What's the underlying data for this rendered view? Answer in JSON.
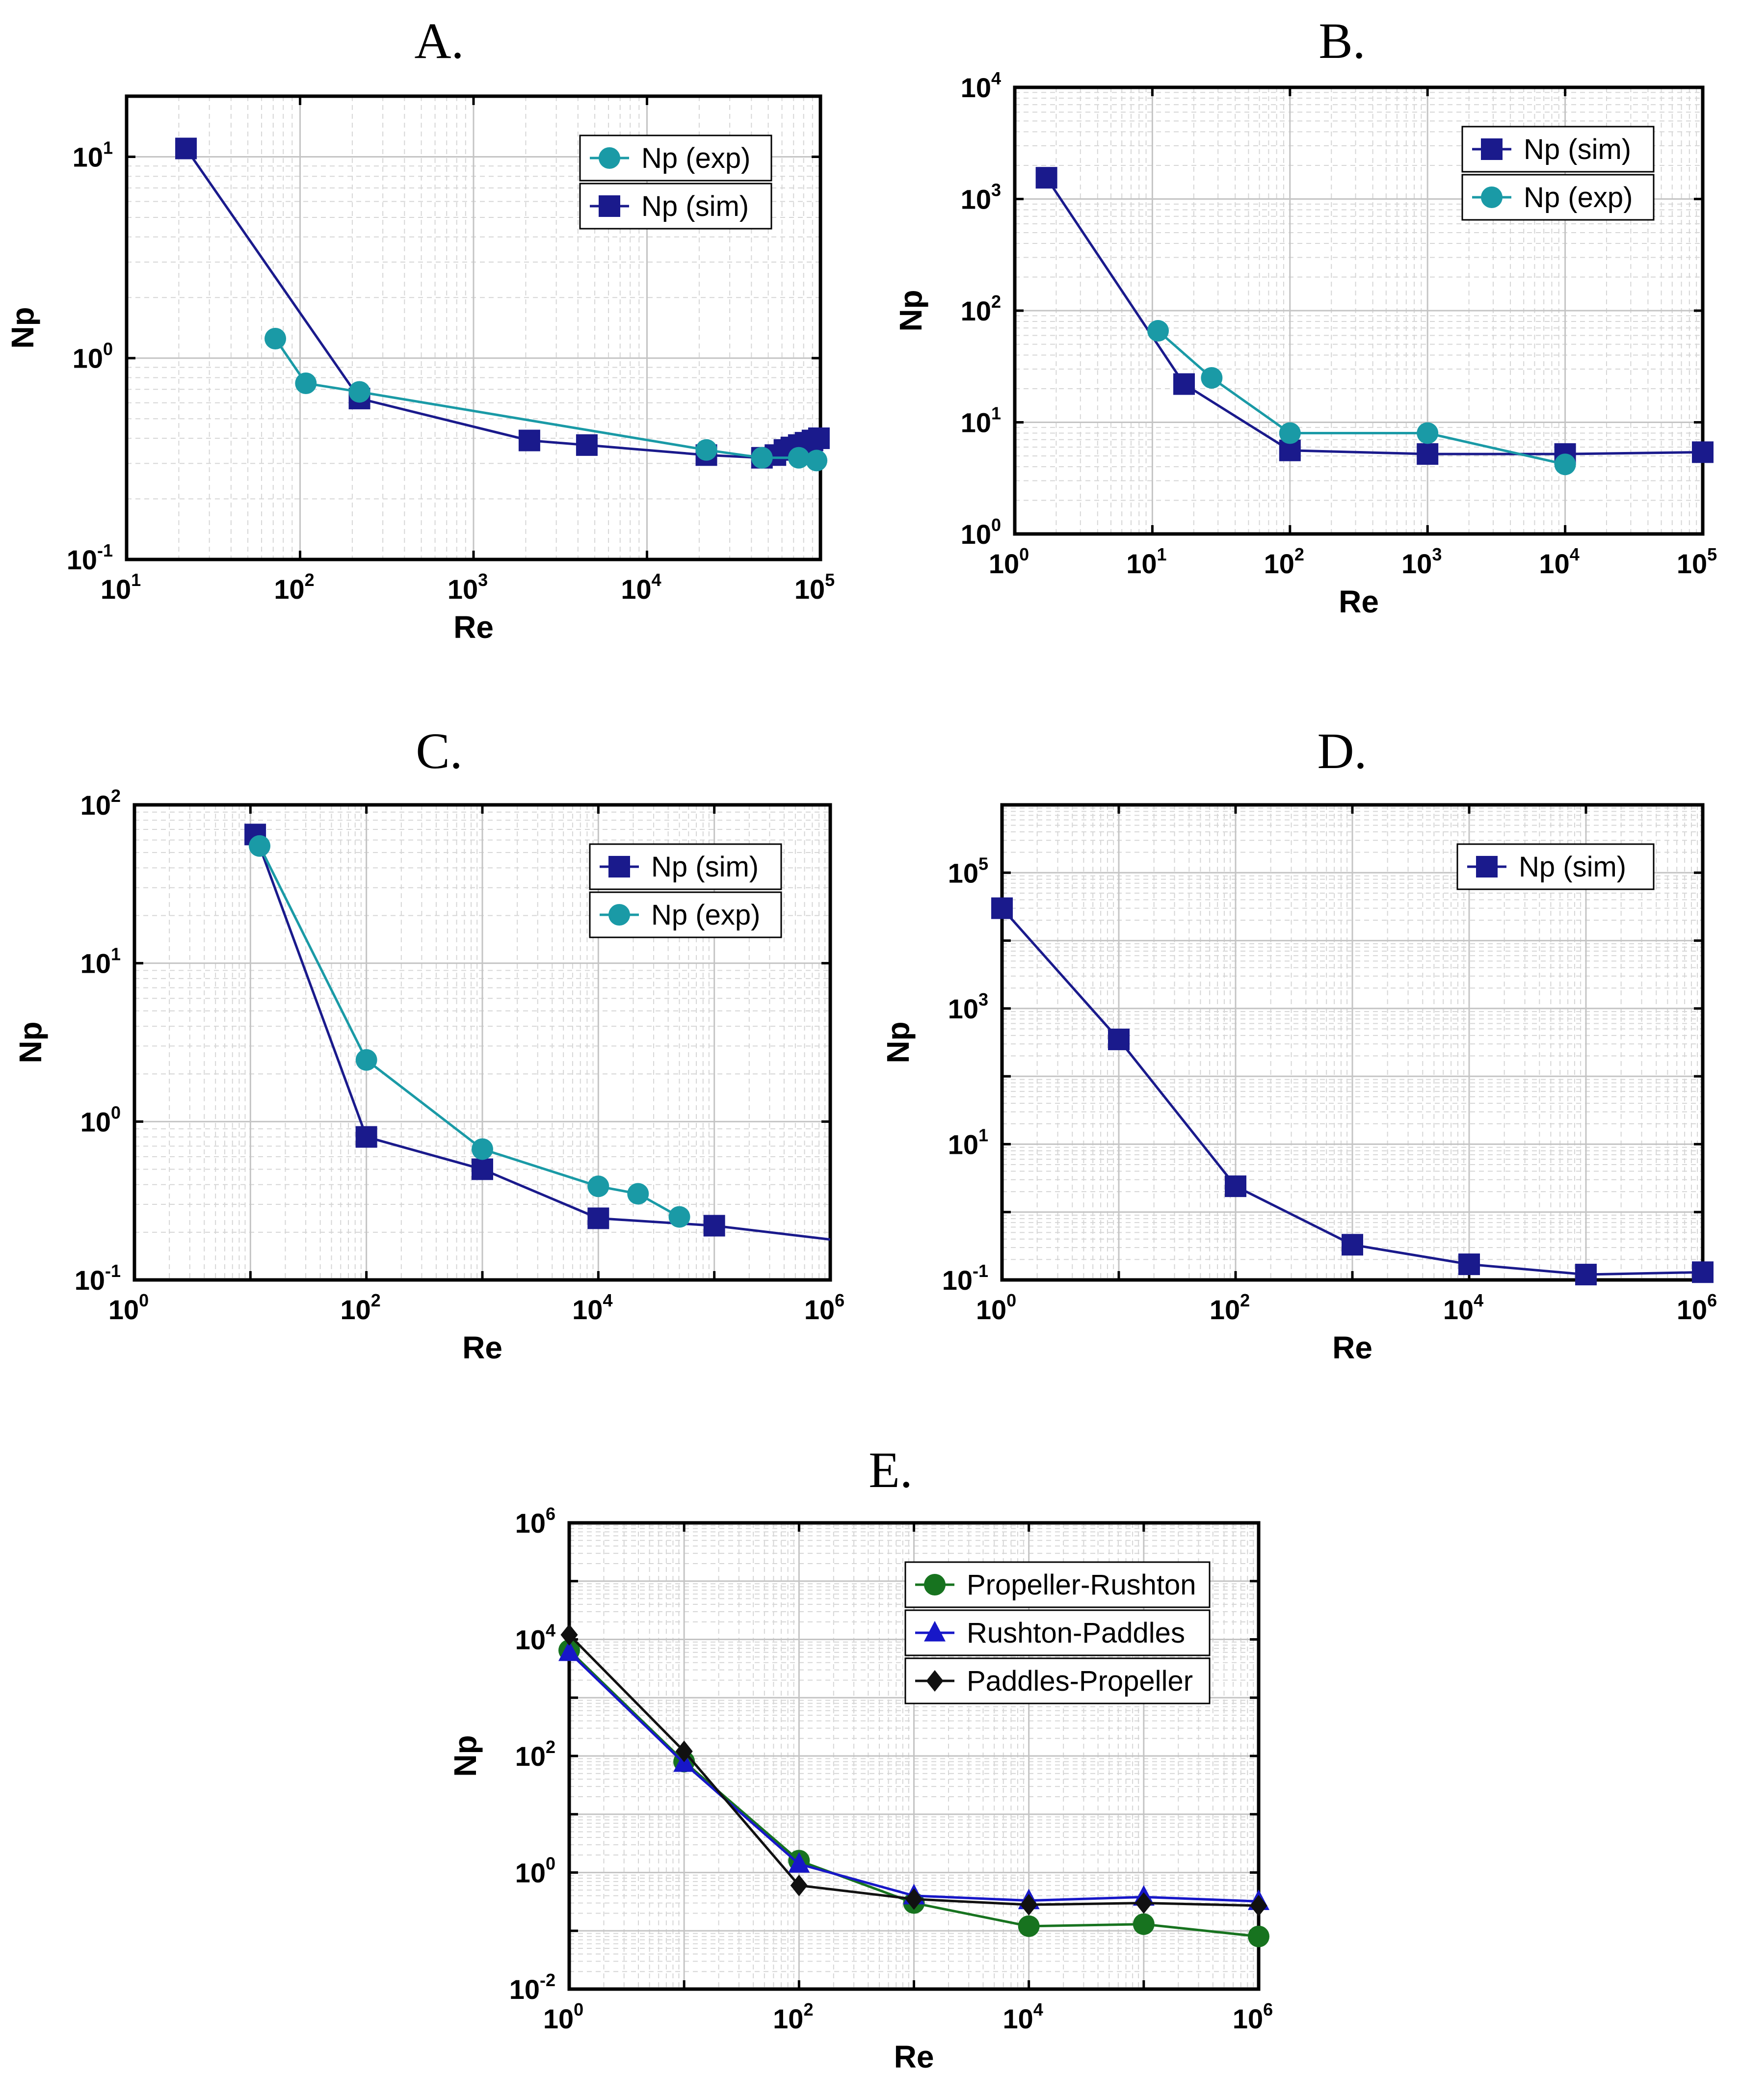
{
  "chart_data": [
    {
      "panel_label": "A.",
      "type": "line",
      "scale": "log-log",
      "xlabel": "Re",
      "ylabel": "Np",
      "xlim": [
        10,
        100000
      ],
      "ylim": [
        0.1,
        20
      ],
      "x_ticks": [
        {
          "base": "10",
          "exp": "1",
          "v": 10
        },
        {
          "base": "10",
          "exp": "2",
          "v": 100
        },
        {
          "base": "10",
          "exp": "3",
          "v": 1000
        },
        {
          "base": "10",
          "exp": "4",
          "v": 10000
        },
        {
          "base": "10",
          "exp": "5",
          "v": 100000
        }
      ],
      "y_ticks": [
        {
          "base": "10",
          "exp": "-1",
          "v": 0.1
        },
        {
          "base": "10",
          "exp": "0",
          "v": 1
        },
        {
          "base": "10",
          "exp": "1",
          "v": 10
        }
      ],
      "legend_position": "top-right",
      "legend_order": [
        "Np (exp)",
        "Np (sim)"
      ],
      "series": [
        {
          "name": "Np (sim)",
          "marker": "square",
          "color": "#1a1a8c",
          "x": [
            22,
            220,
            2100,
            4500,
            22000,
            46000,
            55000,
            62000,
            68000,
            75000,
            82000,
            90000,
            98000
          ],
          "y": [
            11,
            0.63,
            0.39,
            0.37,
            0.33,
            0.32,
            0.33,
            0.35,
            0.36,
            0.37,
            0.38,
            0.39,
            0.4
          ]
        },
        {
          "name": "Np (exp)",
          "marker": "circle",
          "color": "#1a9aa6",
          "x": [
            72,
            108,
            220,
            22000,
            46000,
            75000,
            95000
          ],
          "y": [
            1.25,
            0.75,
            0.68,
            0.35,
            0.32,
            0.32,
            0.31
          ]
        }
      ]
    },
    {
      "panel_label": "B.",
      "type": "line",
      "scale": "log-log",
      "xlabel": "Re",
      "ylabel": "Np",
      "xlim": [
        1,
        100000
      ],
      "ylim": [
        1,
        10000
      ],
      "x_ticks": [
        {
          "base": "10",
          "exp": "0",
          "v": 1
        },
        {
          "base": "10",
          "exp": "1",
          "v": 10
        },
        {
          "base": "10",
          "exp": "2",
          "v": 100
        },
        {
          "base": "10",
          "exp": "3",
          "v": 1000
        },
        {
          "base": "10",
          "exp": "4",
          "v": 10000
        },
        {
          "base": "10",
          "exp": "5",
          "v": 100000
        }
      ],
      "y_ticks": [
        {
          "base": "10",
          "exp": "0",
          "v": 1
        },
        {
          "base": "10",
          "exp": "1",
          "v": 10
        },
        {
          "base": "10",
          "exp": "2",
          "v": 100
        },
        {
          "base": "10",
          "exp": "3",
          "v": 1000
        },
        {
          "base": "10",
          "exp": "4",
          "v": 10000
        }
      ],
      "legend_position": "top-right",
      "legend_order": [
        "Np (sim)",
        "Np (exp)"
      ],
      "series": [
        {
          "name": "Np (sim)",
          "marker": "square",
          "color": "#1a1a8c",
          "x": [
            1.7,
            17,
            100,
            1000,
            10000,
            100000
          ],
          "y": [
            1550,
            22,
            5.6,
            5.2,
            5.2,
            5.4
          ]
        },
        {
          "name": "Np (exp)",
          "marker": "circle",
          "color": "#1a9aa6",
          "x": [
            11,
            27,
            100,
            1000,
            10000
          ],
          "y": [
            66,
            25,
            8,
            8,
            4.2
          ]
        }
      ]
    },
    {
      "panel_label": "C.",
      "type": "line",
      "scale": "log-log",
      "xlabel": "Re",
      "ylabel": "Np",
      "xlim": [
        1,
        1000000
      ],
      "ylim": [
        0.1,
        100
      ],
      "x_ticks": [
        {
          "base": "10",
          "exp": "0",
          "v": 1
        },
        {
          "base": "10",
          "exp": "2",
          "v": 100
        },
        {
          "base": "10",
          "exp": "4",
          "v": 10000
        },
        {
          "base": "10",
          "exp": "6",
          "v": 1000000
        }
      ],
      "y_ticks": [
        {
          "base": "10",
          "exp": "-1",
          "v": 0.1
        },
        {
          "base": "10",
          "exp": "0",
          "v": 1
        },
        {
          "base": "10",
          "exp": "1",
          "v": 10
        },
        {
          "base": "10",
          "exp": "2",
          "v": 100
        }
      ],
      "legend_position": "top-right",
      "legend_order": [
        "Np (sim)",
        "Np (exp)"
      ],
      "series": [
        {
          "name": "Np (sim)",
          "marker": "square",
          "color": "#1a1a8c",
          "x": [
            11,
            100,
            1000,
            10000,
            100000,
            1000000
          ],
          "y": [
            65,
            0.8,
            0.5,
            0.245,
            0.22,
            0.18
          ],
          "markers_on": [
            true,
            true,
            true,
            true,
            true,
            false
          ]
        },
        {
          "name": "Np (exp)",
          "marker": "circle",
          "color": "#1a9aa6",
          "x": [
            12,
            100,
            1000,
            10000,
            22000,
            50000
          ],
          "y": [
            55,
            2.45,
            0.67,
            0.39,
            0.35,
            0.25
          ]
        }
      ]
    },
    {
      "panel_label": "D.",
      "type": "line",
      "scale": "log-log",
      "xlabel": "Re",
      "ylabel": "Np",
      "xlim": [
        1,
        1000000
      ],
      "ylim": [
        0.1,
        1000000
      ],
      "x_ticks": [
        {
          "base": "10",
          "exp": "0",
          "v": 1
        },
        {
          "base": "10",
          "exp": "2",
          "v": 100
        },
        {
          "base": "10",
          "exp": "4",
          "v": 10000
        },
        {
          "base": "10",
          "exp": "6",
          "v": 1000000
        }
      ],
      "y_ticks": [
        {
          "base": "10",
          "exp": "-1",
          "v": 0.1
        },
        {
          "base": "10",
          "exp": "1",
          "v": 10
        },
        {
          "base": "10",
          "exp": "3",
          "v": 1000
        },
        {
          "base": "10",
          "exp": "5",
          "v": 100000
        }
      ],
      "legend_position": "top-right",
      "legend_order": [
        "Np (sim)"
      ],
      "series": [
        {
          "name": "Np (sim)",
          "marker": "square",
          "color": "#1a1a8c",
          "x": [
            1,
            10,
            100,
            1000,
            10000,
            100000,
            1000000
          ],
          "y": [
            30000,
            350,
            2.4,
            0.33,
            0.17,
            0.12,
            0.13
          ]
        }
      ]
    },
    {
      "panel_label": "E.",
      "type": "line",
      "scale": "log-log",
      "xlabel": "Re",
      "ylabel": "Np",
      "xlim": [
        1,
        1000000
      ],
      "ylim": [
        0.01,
        1000000
      ],
      "x_ticks": [
        {
          "base": "10",
          "exp": "0",
          "v": 1
        },
        {
          "base": "10",
          "exp": "2",
          "v": 100
        },
        {
          "base": "10",
          "exp": "4",
          "v": 10000
        },
        {
          "base": "10",
          "exp": "6",
          "v": 1000000
        }
      ],
      "y_ticks": [
        {
          "base": "10",
          "exp": "-2",
          "v": 0.01
        },
        {
          "base": "10",
          "exp": "0",
          "v": 1
        },
        {
          "base": "10",
          "exp": "2",
          "v": 100
        },
        {
          "base": "10",
          "exp": "4",
          "v": 10000
        },
        {
          "base": "10",
          "exp": "6",
          "v": 1000000
        }
      ],
      "legend_position": "top-right",
      "legend_order": [
        "Propeller-Rushton",
        "Rushton-Paddles",
        "Paddles-Propeller"
      ],
      "series": [
        {
          "name": "Propeller-Rushton",
          "marker": "circle",
          "color": "#17731f",
          "x": [
            1,
            10,
            100,
            1000,
            10000,
            100000,
            1000000
          ],
          "y": [
            6500,
            80,
            1.6,
            0.3,
            0.12,
            0.13,
            0.08
          ]
        },
        {
          "name": "Rushton-Paddles",
          "marker": "triangle",
          "color": "#1717c8",
          "x": [
            1,
            10,
            100,
            1000,
            10000,
            100000,
            1000000
          ],
          "y": [
            6000,
            75,
            1.4,
            0.4,
            0.33,
            0.38,
            0.32
          ]
        },
        {
          "name": "Paddles-Propeller",
          "marker": "diamond",
          "color": "#111111",
          "x": [
            1,
            10,
            100,
            1000,
            10000,
            100000,
            1000000
          ],
          "y": [
            12000,
            120,
            0.6,
            0.35,
            0.28,
            0.3,
            0.27
          ]
        }
      ]
    }
  ]
}
